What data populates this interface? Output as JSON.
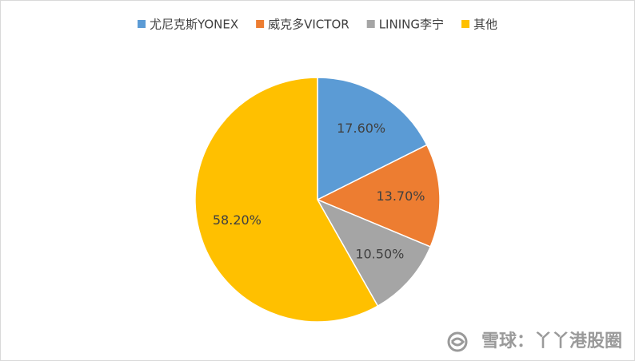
{
  "chart_data": {
    "type": "pie",
    "categories": [
      "尤尼克斯YONEX",
      "威克多VICTOR",
      "LINING李宁",
      "其他"
    ],
    "values": [
      17.6,
      13.7,
      10.5,
      58.2
    ],
    "value_labels": [
      "17.60%",
      "13.70%",
      "10.50%",
      "58.20%"
    ],
    "colors": [
      "#5b9bd5",
      "#ed7d31",
      "#a5a5a5",
      "#ffc000"
    ],
    "legend": "top"
  },
  "watermark": "雪球：丫丫港股圈"
}
